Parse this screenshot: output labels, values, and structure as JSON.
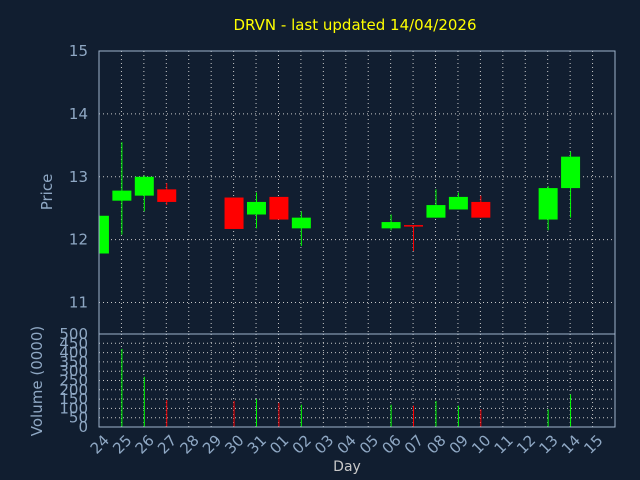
{
  "chart_data": {
    "type": "candlestick",
    "title": "DRVN - last updated 14/04/2026",
    "xlabel": "Day",
    "ylabel": "Price",
    "volume_label": "Volume (0000)",
    "categories": [
      "24",
      "25",
      "26",
      "27",
      "28",
      "29",
      "30",
      "31",
      "01",
      "02",
      "03",
      "04",
      "05",
      "06",
      "07",
      "08",
      "09",
      "10",
      "11",
      "12",
      "13",
      "14",
      "15"
    ],
    "price_ylim": [
      10.5,
      15
    ],
    "price_ticks": [
      "11",
      "12",
      "13",
      "14",
      "15"
    ],
    "price_tick_values": [
      11,
      12,
      13,
      14,
      15
    ],
    "volume_ylim": [
      0,
      500
    ],
    "volume_ticks": [
      "0",
      "50",
      "100",
      "150",
      "200",
      "250",
      "300",
      "350",
      "400",
      "450",
      "500"
    ],
    "volume_tick_values": [
      0,
      50,
      100,
      150,
      200,
      250,
      300,
      350,
      400,
      450,
      500
    ],
    "grid": true,
    "candles": [
      {
        "i": 0,
        "open": 11.78,
        "close": 12.38,
        "high": 12.38,
        "low": 11.78,
        "volume": 0
      },
      {
        "i": 1,
        "open": 12.62,
        "close": 12.78,
        "high": 13.55,
        "low": 12.08,
        "volume": 420
      },
      {
        "i": 2,
        "open": 12.7,
        "close": 13.0,
        "high": 13.02,
        "low": 12.45,
        "volume": 270
      },
      {
        "i": 3,
        "open": 12.8,
        "close": 12.6,
        "high": 12.9,
        "low": 12.55,
        "volume": 145
      },
      {
        "i": 6,
        "open": 12.67,
        "close": 12.17,
        "high": 12.67,
        "low": 12.17,
        "volume": 140
      },
      {
        "i": 7,
        "open": 12.4,
        "close": 12.6,
        "high": 12.75,
        "low": 12.18,
        "volume": 150
      },
      {
        "i": 8,
        "open": 12.68,
        "close": 12.32,
        "high": 12.68,
        "low": 12.32,
        "volume": 130
      },
      {
        "i": 9,
        "open": 12.18,
        "close": 12.35,
        "high": 12.45,
        "low": 11.9,
        "volume": 120
      },
      {
        "i": 13,
        "open": 12.18,
        "close": 12.28,
        "high": 12.4,
        "low": 12.15,
        "volume": 120
      },
      {
        "i": 14,
        "open": 12.22,
        "close": 12.2,
        "high": 12.22,
        "low": 11.82,
        "volume": 115
      },
      {
        "i": 15,
        "open": 12.35,
        "close": 12.55,
        "high": 12.8,
        "low": 12.35,
        "volume": 140
      },
      {
        "i": 16,
        "open": 12.48,
        "close": 12.68,
        "high": 12.75,
        "low": 12.48,
        "volume": 115
      },
      {
        "i": 17,
        "open": 12.6,
        "close": 12.35,
        "high": 12.7,
        "low": 12.35,
        "volume": 95
      },
      {
        "i": 20,
        "open": 12.32,
        "close": 12.82,
        "high": 12.85,
        "low": 12.15,
        "volume": 95
      },
      {
        "i": 21,
        "open": 12.82,
        "close": 13.32,
        "high": 13.4,
        "low": 12.35,
        "volume": 175
      }
    ],
    "colors": {
      "up": "#00ff00",
      "down": "#ff0000",
      "background": "#111e30",
      "title": "#ffff00",
      "axis_text": "#8fa8c4",
      "grid": "#c8c8c8"
    }
  }
}
